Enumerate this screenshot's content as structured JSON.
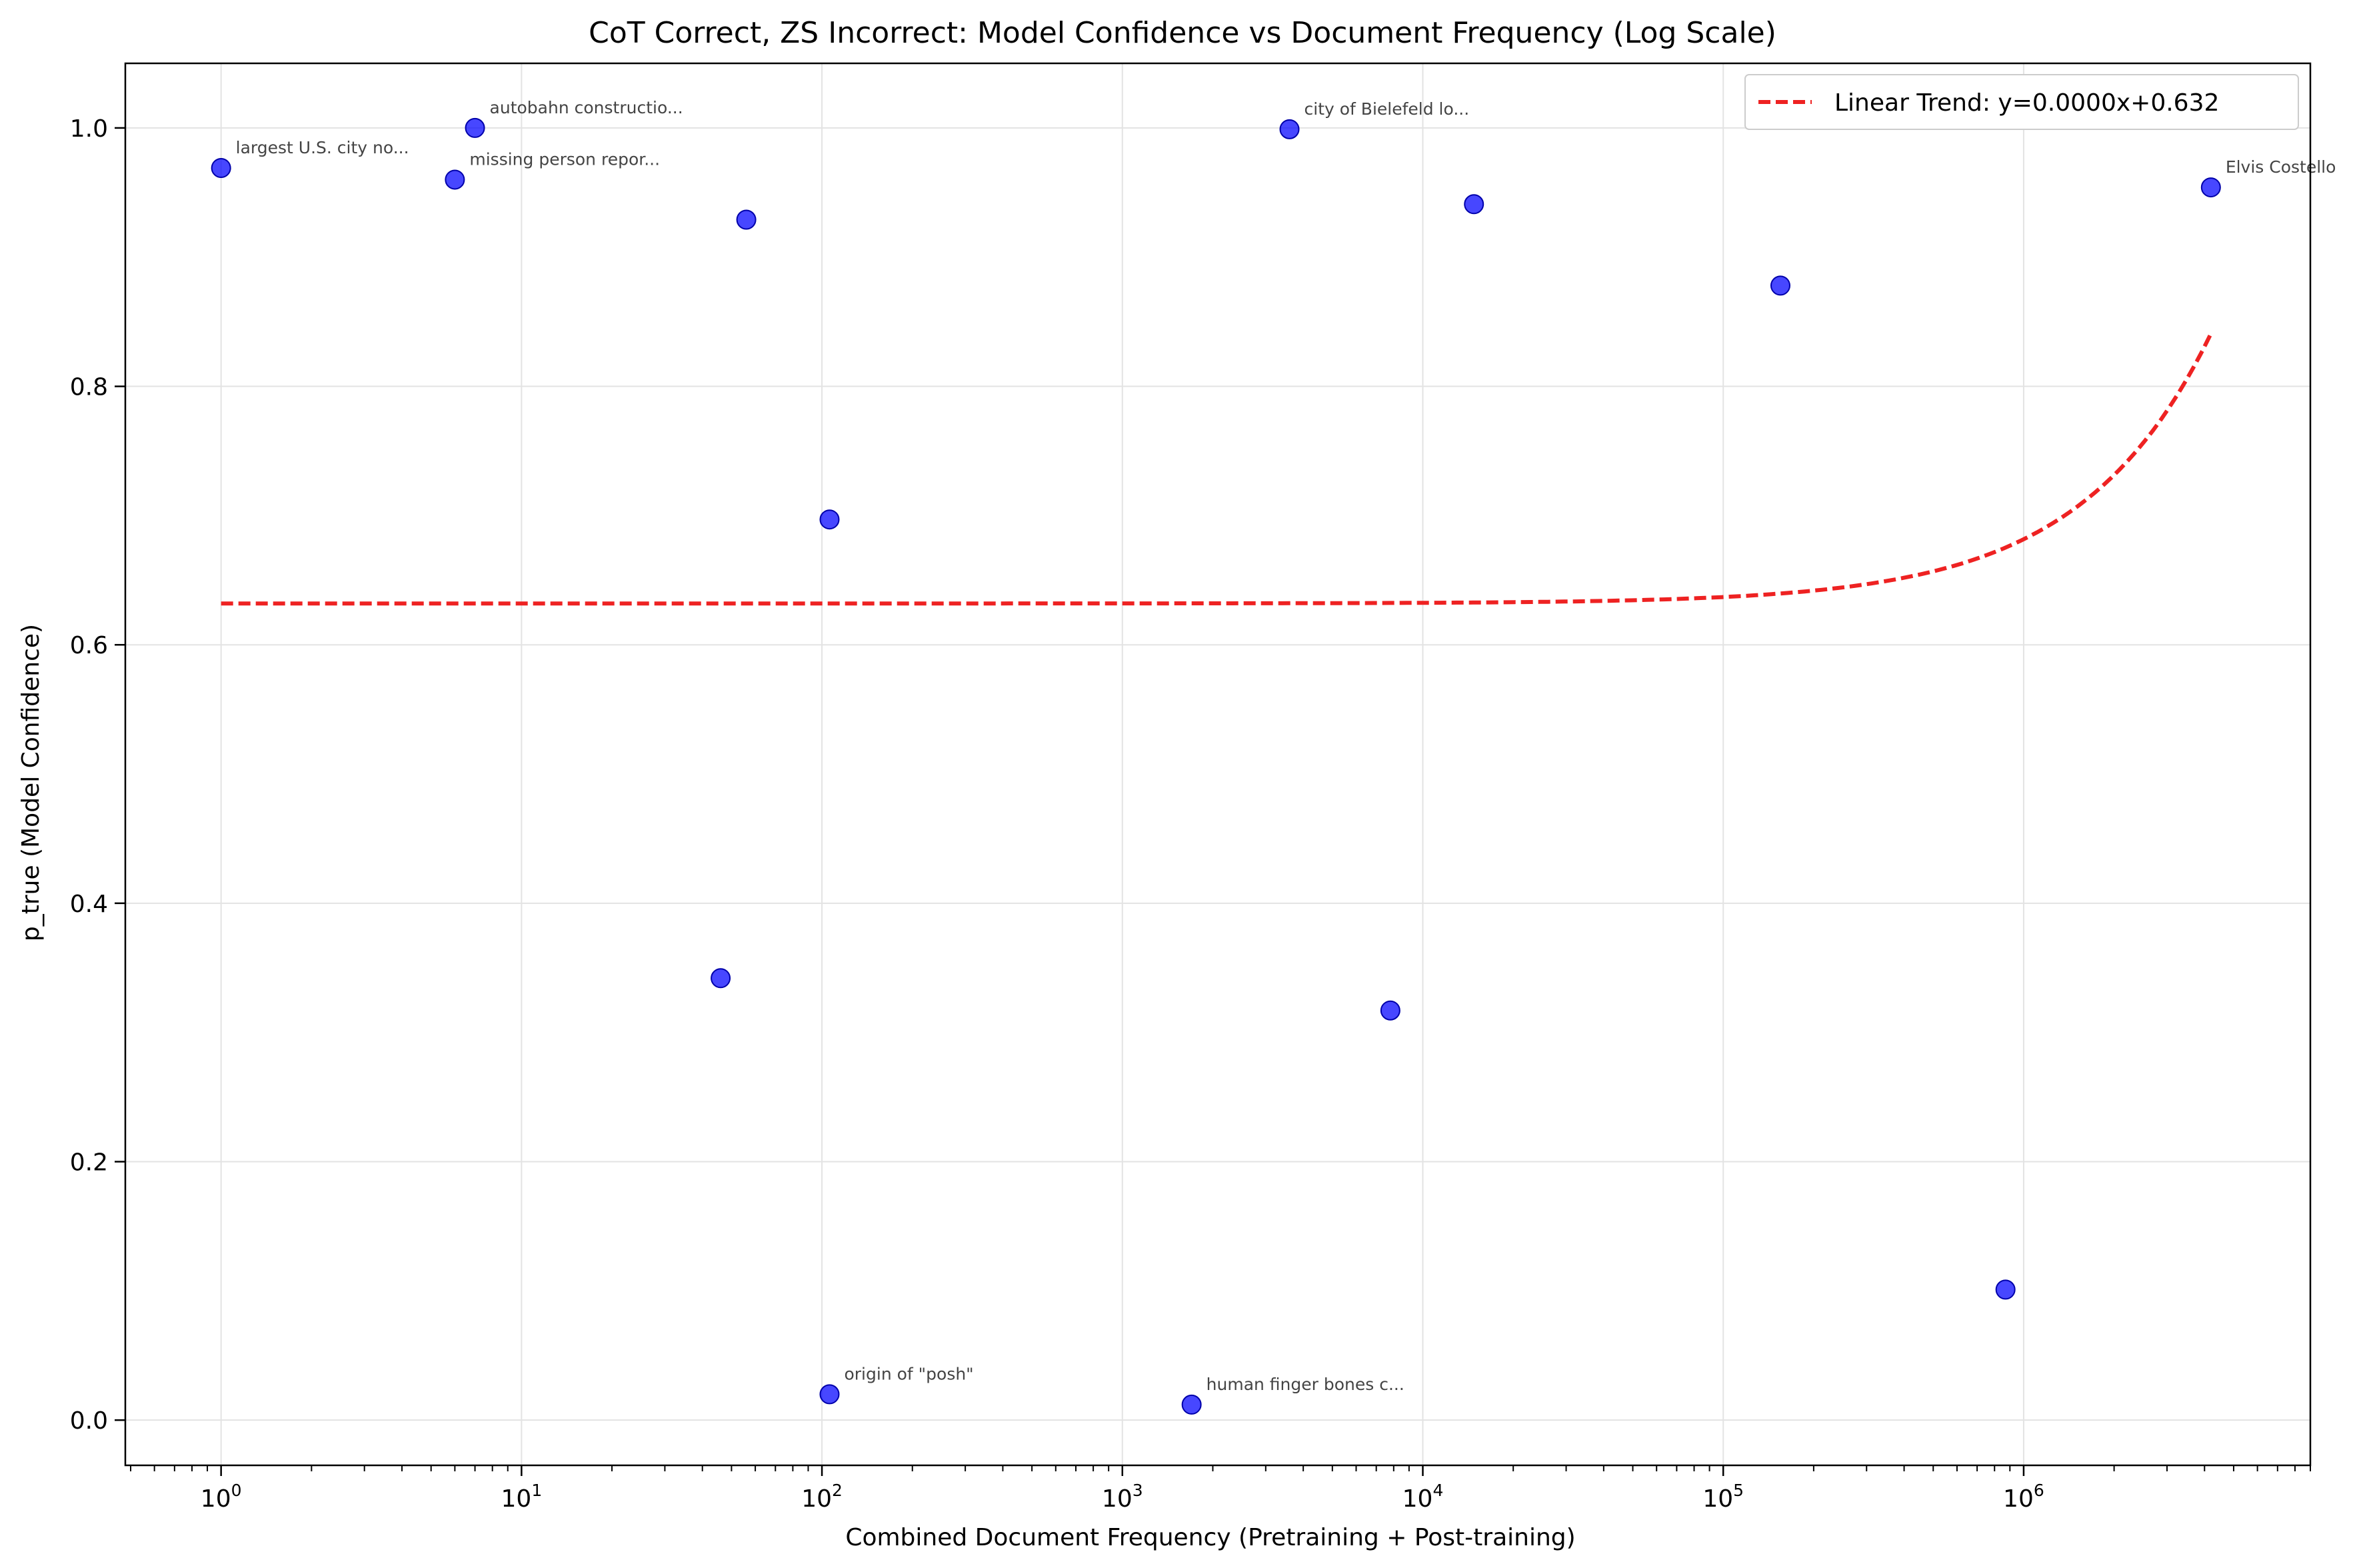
{
  "chart_data": {
    "type": "scatter",
    "title": "CoT Correct, ZS Incorrect: Model Confidence vs Document Frequency (Log Scale)",
    "xlabel": "Combined Document Frequency (Pretraining + Post-training)",
    "ylabel": "p_true (Model Confidence)",
    "x_scale": "log",
    "xlim": [
      0.48,
      9000000
    ],
    "ylim": [
      -0.035,
      1.05
    ],
    "x_ticks": [
      1,
      10,
      100,
      1000,
      10000,
      100000,
      1000000
    ],
    "x_tick_labels": [
      {
        "base": "10",
        "exp": "0"
      },
      {
        "base": "10",
        "exp": "1"
      },
      {
        "base": "10",
        "exp": "2"
      },
      {
        "base": "10",
        "exp": "3"
      },
      {
        "base": "10",
        "exp": "4"
      },
      {
        "base": "10",
        "exp": "5"
      },
      {
        "base": "10",
        "exp": "6"
      }
    ],
    "y_ticks": [
      0.0,
      0.2,
      0.4,
      0.6,
      0.8,
      1.0
    ],
    "y_tick_labels": [
      "0.0",
      "0.2",
      "0.4",
      "0.6",
      "0.8",
      "1.0"
    ],
    "grid": true,
    "legend_position": "top-right",
    "point_color": "#0000ff",
    "trend_color": "#ee2222",
    "series": [
      {
        "name": "",
        "points": [
          {
            "x": 1,
            "y": 0.969,
            "label": "largest U.S. city no..."
          },
          {
            "x": 6,
            "y": 0.96,
            "label": "missing person repor..."
          },
          {
            "x": 7,
            "y": 1.0,
            "label": "autobahn constructio..."
          },
          {
            "x": 46,
            "y": 0.342,
            "label": ""
          },
          {
            "x": 56,
            "y": 0.929,
            "label": ""
          },
          {
            "x": 106,
            "y": 0.697,
            "label": ""
          },
          {
            "x": 106,
            "y": 0.02,
            "label": "origin of \"posh\""
          },
          {
            "x": 1700,
            "y": 0.012,
            "label": "human finger bones c..."
          },
          {
            "x": 3600,
            "y": 0.999,
            "label": "city of Bielefeld lo..."
          },
          {
            "x": 7800,
            "y": 0.317,
            "label": ""
          },
          {
            "x": 14800,
            "y": 0.941,
            "label": ""
          },
          {
            "x": 155000,
            "y": 0.878,
            "label": ""
          },
          {
            "x": 870000,
            "y": 0.101,
            "label": ""
          },
          {
            "x": 4200000,
            "y": 0.954,
            "label": "Elvis Costello"
          }
        ]
      }
    ],
    "trend": {
      "name": "Linear Trend: y=0.0000x+0.632",
      "intercept": 0.632,
      "slope": 4.97e-08,
      "x_range": [
        1,
        4200000
      ]
    }
  }
}
